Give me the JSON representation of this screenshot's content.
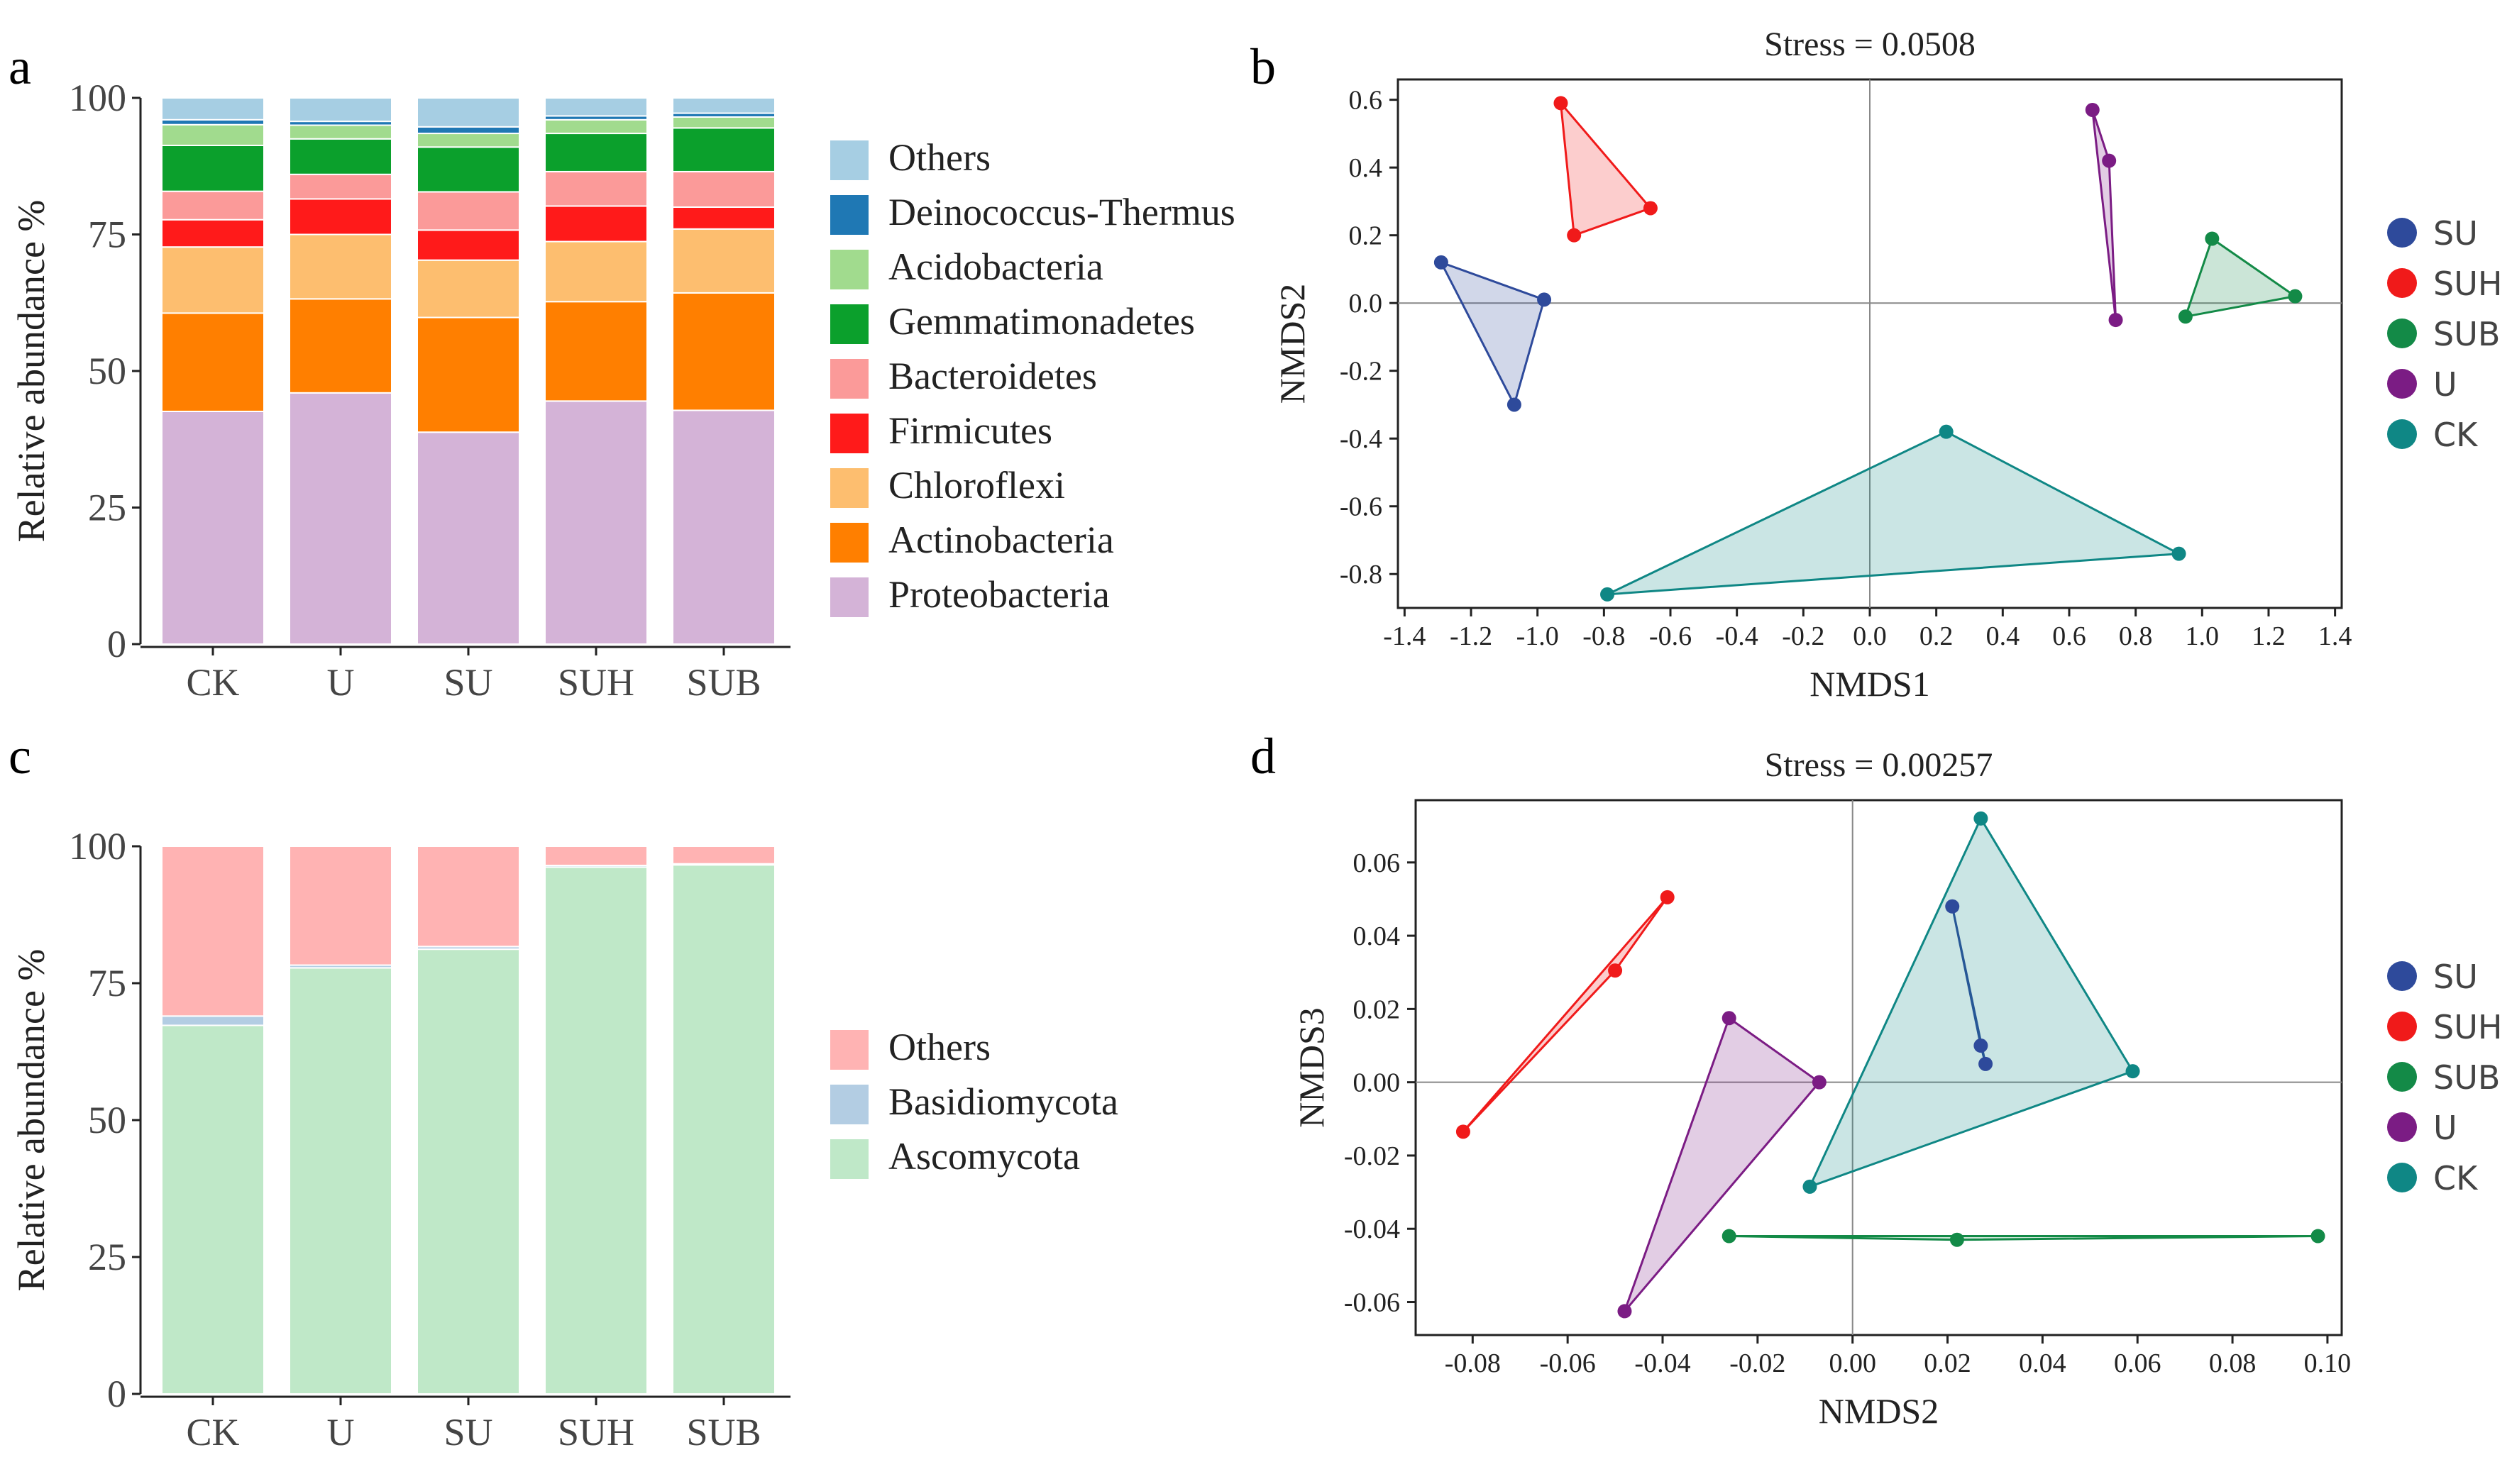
{
  "panel_labels": [
    "a",
    "b",
    "c",
    "d"
  ],
  "colors": {
    "axis": "#222222",
    "refline": "#888888",
    "tick_text": "#444444"
  },
  "chart_data": [
    {
      "id": "a",
      "type": "bar",
      "stacked": true,
      "ylabel": "Relative abundance %",
      "xlabel": "",
      "categories": [
        "CK",
        "U",
        "SU",
        "SUH",
        "SUB"
      ],
      "ylim": [
        0,
        100
      ],
      "yticks": [
        0,
        25,
        50,
        75,
        100
      ],
      "legend_position": "right",
      "series": [
        {
          "name": "Proteobacteria",
          "color": "#D4B3D7",
          "values": [
            42.6,
            46.0,
            38.8,
            44.5,
            42.8
          ]
        },
        {
          "name": "Actinobacteria",
          "color": "#FF7F00",
          "values": [
            18.0,
            17.2,
            21.0,
            18.2,
            21.5
          ]
        },
        {
          "name": "Chloroflexi",
          "color": "#FDBE6F",
          "values": [
            12.1,
            11.8,
            10.5,
            11.0,
            11.7
          ]
        },
        {
          "name": "Firmicutes",
          "color": "#FF1A1A",
          "values": [
            5.0,
            6.5,
            5.5,
            6.5,
            4.0
          ]
        },
        {
          "name": "Bacteroidetes",
          "color": "#FB9A99",
          "values": [
            5.2,
            4.5,
            7.0,
            6.3,
            6.5
          ]
        },
        {
          "name": "Gemmatimonadetes",
          "color": "#0BA02C",
          "values": [
            8.4,
            6.5,
            8.2,
            7.0,
            8.0
          ]
        },
        {
          "name": "Acidobacteria",
          "color": "#A1DB8E",
          "values": [
            3.8,
            2.5,
            2.5,
            2.5,
            2.0
          ]
        },
        {
          "name": "Deinococcus-Thermus",
          "color": "#1F78B4",
          "values": [
            0.9,
            0.7,
            1.2,
            0.7,
            0.7
          ]
        },
        {
          "name": "Others",
          "color": "#A6CEE3",
          "values": [
            4.0,
            4.3,
            5.3,
            3.3,
            2.8
          ]
        }
      ]
    },
    {
      "id": "b",
      "type": "scatter",
      "title": "Stress = 0.0508",
      "xlabel": "NMDS1",
      "ylabel": "NMDS2",
      "xlim": [
        -1.42,
        1.42
      ],
      "ylim": [
        -0.9,
        0.66
      ],
      "xticks": [
        -1.4,
        -1.2,
        -1.0,
        -0.8,
        -0.6,
        -0.4,
        -0.2,
        0.0,
        0.2,
        0.4,
        0.6,
        0.8,
        1.0,
        1.2,
        1.4
      ],
      "xtick_labels": [
        "-1.4",
        "-1.2",
        "-1.0",
        "-0.8",
        "-0.6",
        "-0.4",
        "-0.2",
        "0.0",
        "0.2",
        "0.4",
        "0.6",
        "0.8",
        "1.0",
        "1.2",
        "1.4"
      ],
      "yticks": [
        0.6,
        0.4,
        0.2,
        0.0,
        -0.2,
        -0.4,
        -0.6,
        -0.8
      ],
      "ytick_labels": [
        "0.6",
        "0.4",
        "0.2",
        "0.0",
        "-0.2",
        "-0.4",
        "-0.6",
        "-0.8"
      ],
      "hull": true,
      "legend_position": "right",
      "series": [
        {
          "name": "SU",
          "color": "#2E4A9B",
          "points": [
            [
              -1.29,
              0.12
            ],
            [
              -0.98,
              0.01
            ],
            [
              -1.07,
              -0.3
            ]
          ]
        },
        {
          "name": "SUH",
          "color": "#F01A1A",
          "points": [
            [
              -0.93,
              0.59
            ],
            [
              -0.66,
              0.28
            ],
            [
              -0.89,
              0.2
            ]
          ]
        },
        {
          "name": "SUB",
          "color": "#138A47",
          "points": [
            [
              1.03,
              0.19
            ],
            [
              1.28,
              0.02
            ],
            [
              0.95,
              -0.04
            ]
          ]
        },
        {
          "name": "U",
          "color": "#7B1C84",
          "points": [
            [
              0.67,
              0.57
            ],
            [
              0.72,
              0.42
            ],
            [
              0.74,
              -0.05
            ]
          ]
        },
        {
          "name": "CK",
          "color": "#0F8785",
          "points": [
            [
              0.23,
              -0.38
            ],
            [
              0.93,
              -0.74
            ],
            [
              -0.79,
              -0.86
            ]
          ]
        }
      ]
    },
    {
      "id": "c",
      "type": "bar",
      "stacked": true,
      "ylabel": "Relative abundance %",
      "xlabel": "",
      "categories": [
        "CK",
        "U",
        "SU",
        "SUH",
        "SUB"
      ],
      "ylim": [
        0,
        100
      ],
      "yticks": [
        0,
        25,
        50,
        75,
        100
      ],
      "legend_position": "right",
      "series": [
        {
          "name": "Ascomycota",
          "color": "#BFE8C8",
          "values": [
            67.3,
            77.8,
            81.2,
            96.2,
            96.6
          ]
        },
        {
          "name": "Basidiomycota",
          "color": "#B3CDE3",
          "values": [
            1.7,
            0.5,
            0.5,
            0.3,
            0.2
          ]
        },
        {
          "name": "Others",
          "color": "#FFB3B3",
          "values": [
            31.0,
            21.7,
            18.3,
            3.5,
            3.2
          ]
        }
      ]
    },
    {
      "id": "d",
      "type": "scatter",
      "title": "Stress = 0.00257",
      "xlabel": "NMDS2",
      "ylabel": "NMDS3",
      "xlim": [
        -0.092,
        0.103
      ],
      "ylim": [
        -0.069,
        0.077
      ],
      "xticks": [
        -0.08,
        -0.06,
        -0.04,
        -0.02,
        0.0,
        0.02,
        0.04,
        0.06,
        0.08,
        0.1
      ],
      "xtick_labels": [
        "-0.08",
        "-0.06",
        "-0.04",
        "-0.02",
        "0.00",
        "0.02",
        "0.04",
        "0.06",
        "0.08",
        "0.10"
      ],
      "yticks": [
        0.06,
        0.04,
        0.02,
        0.0,
        -0.02,
        -0.04,
        -0.06
      ],
      "ytick_labels": [
        "0.06",
        "0.04",
        "0.02",
        "0.00",
        "-0.02",
        "-0.04",
        "-0.06"
      ],
      "hull": true,
      "legend_position": "right",
      "series": [
        {
          "name": "SU",
          "color": "#2E4A9B",
          "points": [
            [
              0.021,
              0.048
            ],
            [
              0.027,
              0.01
            ],
            [
              0.028,
              0.005
            ]
          ]
        },
        {
          "name": "SUH",
          "color": "#F01A1A",
          "points": [
            [
              -0.039,
              0.0505
            ],
            [
              -0.05,
              0.0305
            ],
            [
              -0.082,
              -0.0135
            ]
          ]
        },
        {
          "name": "SUB",
          "color": "#138A47",
          "points": [
            [
              -0.026,
              -0.042
            ],
            [
              0.022,
              -0.043
            ],
            [
              0.098,
              -0.042
            ]
          ]
        },
        {
          "name": "U",
          "color": "#7B1C84",
          "points": [
            [
              -0.026,
              0.0175
            ],
            [
              -0.007,
              0.0
            ],
            [
              -0.048,
              -0.0625
            ]
          ]
        },
        {
          "name": "CK",
          "color": "#0F8785",
          "points": [
            [
              0.027,
              0.072
            ],
            [
              0.059,
              0.003
            ],
            [
              -0.009,
              -0.0285
            ]
          ]
        }
      ]
    }
  ]
}
